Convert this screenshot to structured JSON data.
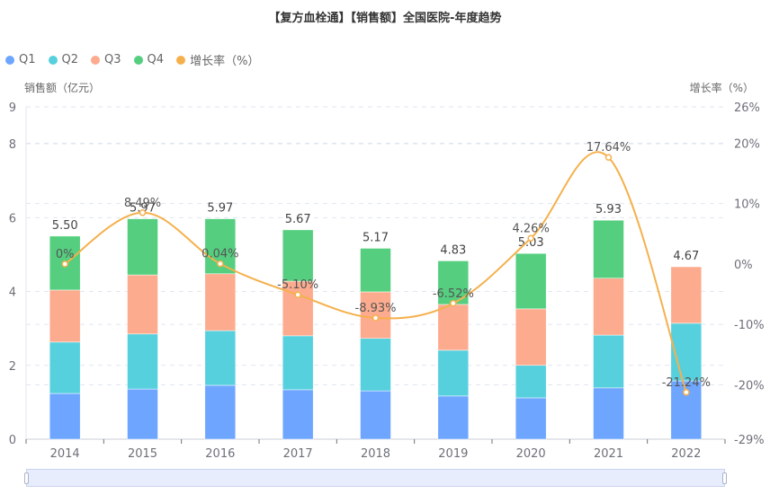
{
  "chart_data": {
    "type": "bar",
    "title": "【复方血栓通】【销售额】全国医院-年度趋势",
    "categories": [
      "2014",
      "2015",
      "2016",
      "2017",
      "2018",
      "2019",
      "2020",
      "2021",
      "2022"
    ],
    "stacked": true,
    "series": [
      {
        "name": "Q1",
        "color": "#6ea6ff",
        "values": [
          1.24,
          1.36,
          1.46,
          1.34,
          1.31,
          1.17,
          1.12,
          1.39,
          1.58
        ]
      },
      {
        "name": "Q2",
        "color": "#57d0de",
        "values": [
          1.39,
          1.49,
          1.48,
          1.46,
          1.42,
          1.24,
          0.88,
          1.43,
          1.56
        ]
      },
      {
        "name": "Q3",
        "color": "#fdab8e",
        "values": [
          1.41,
          1.6,
          1.54,
          1.48,
          1.26,
          1.24,
          1.53,
          1.54,
          1.53
        ]
      },
      {
        "name": "Q4",
        "color": "#55cf7f",
        "values": [
          1.46,
          1.52,
          1.49,
          1.39,
          1.18,
          1.18,
          1.5,
          1.57,
          null
        ]
      }
    ],
    "totals": [
      "5.50",
      "5.97",
      "5.97",
      "5.67",
      "5.17",
      "4.83",
      "5.03",
      "5.93",
      "4.67"
    ],
    "line": {
      "name": "增长率（%）",
      "color": "#f5b04c",
      "values": [
        0,
        8.49,
        0.04,
        -5.1,
        -8.93,
        -6.52,
        4.26,
        17.64,
        -21.24
      ],
      "labels": [
        "0%",
        "8.49%",
        "0.04%",
        "-5.10%",
        "-8.93%",
        "-6.52%",
        "4.26%",
        "17.64%",
        "-21.24%"
      ]
    },
    "ylabel": "销售额（亿元）",
    "ylabel_right": "增长率（%）",
    "ylim": [
      0,
      9
    ],
    "yticks": [
      "0",
      "2",
      "4",
      "6",
      "8",
      "9"
    ],
    "yticks_values": [
      0,
      2,
      4,
      6,
      8,
      9
    ],
    "ylim_right": [
      -29,
      26
    ],
    "yticks_right": [
      "-29%",
      "-20%",
      "-10%",
      "0%",
      "10%",
      "20%",
      "26%"
    ],
    "yticks_right_values": [
      -29,
      -20,
      -10,
      0,
      10,
      20,
      26
    ],
    "grid": true,
    "legend_position": "top-left",
    "legend": [
      "Q1",
      "Q2",
      "Q3",
      "Q4",
      "增长率（%）"
    ]
  }
}
